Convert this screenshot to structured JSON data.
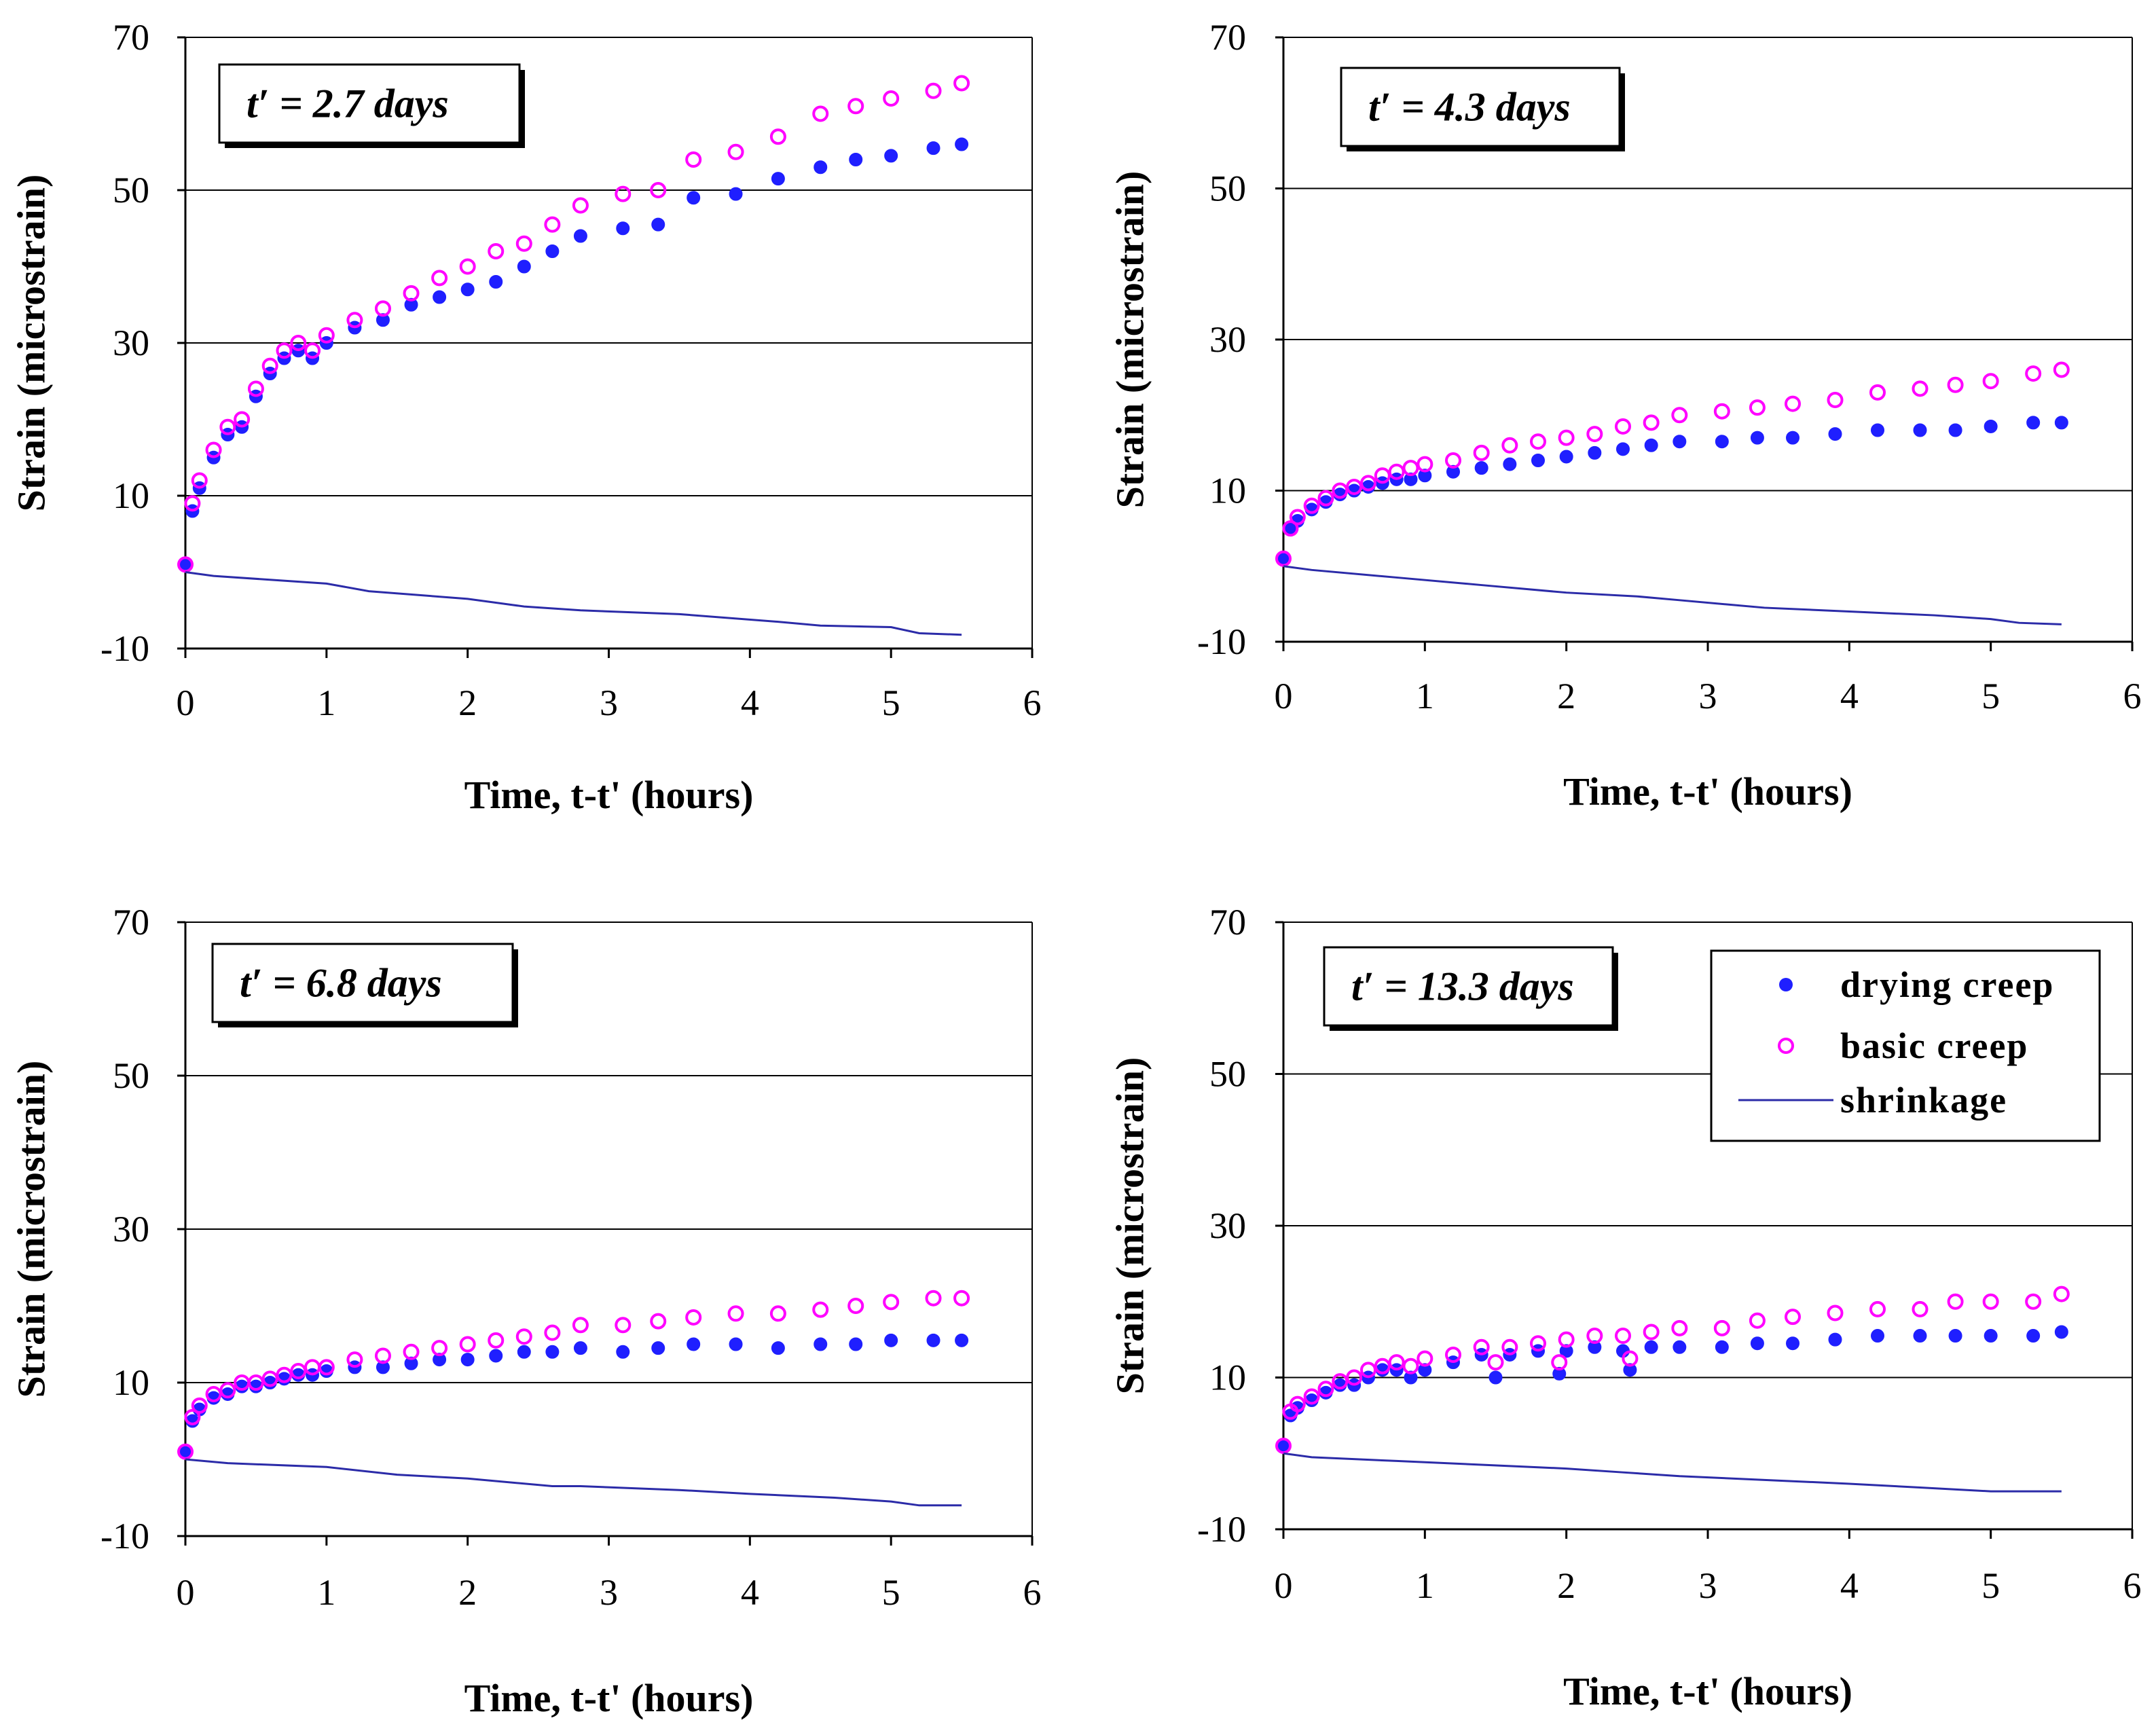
{
  "figure": {
    "legend": {
      "entries": [
        {
          "name": "drying creep",
          "marker": "filled-circle",
          "color": "#1f1fff"
        },
        {
          "name": "basic creep",
          "marker": "open-circle",
          "color": "#ff00ff"
        },
        {
          "name": "shrinkage",
          "marker": "line",
          "color": "#2b2ba8"
        }
      ]
    },
    "colors": {
      "drying": "#1f1fff",
      "basic": "#ff00ff",
      "shrinkage": "#2b2ba8",
      "grid": "#000000"
    }
  },
  "chart_data": [
    {
      "type": "scatter",
      "panel": "top-left",
      "label": "t′ = 2.7 days",
      "xlabel": "Time, t-t' (hours)",
      "ylabel": "Strain (microstrain)",
      "xlim": [
        0,
        6
      ],
      "ylim": [
        -10,
        70
      ],
      "xticks": [
        "0",
        "1",
        "2",
        "3",
        "4",
        "5",
        "6"
      ],
      "yticks": [
        "-10",
        "10",
        "30",
        "50",
        "70"
      ],
      "grid": "horizontal",
      "series": [
        {
          "name": "drying creep",
          "x": [
            0,
            0.05,
            0.1,
            0.2,
            0.3,
            0.4,
            0.5,
            0.6,
            0.7,
            0.8,
            0.9,
            1.0,
            1.2,
            1.4,
            1.6,
            1.8,
            2.0,
            2.2,
            2.4,
            2.6,
            2.8,
            3.1,
            3.35,
            3.6,
            3.9,
            4.2,
            4.5,
            4.75,
            5.0,
            5.3,
            5.5
          ],
          "y": [
            1,
            8,
            11,
            15,
            18,
            19,
            23,
            26,
            28,
            29,
            28,
            30,
            32,
            33,
            35,
            36,
            37,
            38,
            40,
            42,
            44,
            45,
            45.5,
            49,
            49.5,
            51.5,
            53,
            54,
            54.5,
            55.5,
            56
          ]
        },
        {
          "name": "basic creep",
          "x": [
            0,
            0.05,
            0.1,
            0.2,
            0.3,
            0.4,
            0.5,
            0.6,
            0.7,
            0.8,
            0.9,
            1.0,
            1.2,
            1.4,
            1.6,
            1.8,
            2.0,
            2.2,
            2.4,
            2.6,
            2.8,
            3.1,
            3.35,
            3.6,
            3.9,
            4.2,
            4.5,
            4.75,
            5.0,
            5.3,
            5.5
          ],
          "y": [
            1,
            9,
            12,
            16,
            19,
            20,
            24,
            27,
            29,
            30,
            29,
            31,
            33,
            34.5,
            36.5,
            38.5,
            40,
            42,
            43,
            45.5,
            48,
            49.5,
            50,
            54,
            55,
            57,
            60,
            61,
            62,
            63,
            64
          ]
        },
        {
          "name": "shrinkage",
          "x": [
            0,
            0.2,
            1.0,
            1.3,
            2.0,
            2.4,
            2.8,
            3.5,
            4.2,
            4.5,
            5.0,
            5.2,
            5.5
          ],
          "y": [
            0,
            -0.5,
            -1.5,
            -2.5,
            -3.5,
            -4.5,
            -5,
            -5.5,
            -6.5,
            -7,
            -7.2,
            -8,
            -8.2
          ]
        }
      ]
    },
    {
      "type": "scatter",
      "panel": "top-right",
      "label": "t′ = 4.3 days",
      "xlabel": "Time, t-t' (hours)",
      "ylabel": "Strain (microstrain)",
      "xlim": [
        0,
        6
      ],
      "ylim": [
        -10,
        70
      ],
      "xticks": [
        "0",
        "1",
        "2",
        "3",
        "4",
        "5",
        "6"
      ],
      "yticks": [
        "-10",
        "10",
        "30",
        "50",
        "70"
      ],
      "grid": "horizontal",
      "series": [
        {
          "name": "drying creep",
          "x": [
            0,
            0.05,
            0.1,
            0.2,
            0.3,
            0.4,
            0.5,
            0.6,
            0.7,
            0.8,
            0.9,
            1.0,
            1.2,
            1.4,
            1.6,
            1.8,
            2.0,
            2.2,
            2.4,
            2.6,
            2.8,
            3.1,
            3.35,
            3.6,
            3.9,
            4.2,
            4.5,
            4.75,
            5.0,
            5.3,
            5.5
          ],
          "y": [
            1,
            5,
            6,
            7.5,
            8.5,
            9.5,
            10,
            10.5,
            11,
            11.5,
            11.5,
            12,
            12.5,
            13,
            13.5,
            14,
            14.5,
            15,
            15.5,
            16,
            16.5,
            16.5,
            17,
            17,
            17.5,
            18,
            18,
            18,
            18.5,
            19,
            19
          ]
        },
        {
          "name": "basic creep",
          "x": [
            0,
            0.05,
            0.1,
            0.2,
            0.3,
            0.4,
            0.5,
            0.6,
            0.7,
            0.8,
            0.9,
            1.0,
            1.2,
            1.4,
            1.6,
            1.8,
            2.0,
            2.2,
            2.4,
            2.6,
            2.8,
            3.1,
            3.35,
            3.6,
            3.9,
            4.2,
            4.5,
            4.75,
            5.0,
            5.3,
            5.5
          ],
          "y": [
            1,
            5,
            6.5,
            8,
            9,
            10,
            10.5,
            11,
            12,
            12.5,
            13,
            13.5,
            14,
            15,
            16,
            16.5,
            17,
            17.5,
            18.5,
            19,
            20,
            20.5,
            21,
            21.5,
            22,
            23,
            23.5,
            24,
            24.5,
            25.5,
            26
          ]
        },
        {
          "name": "shrinkage",
          "x": [
            0,
            0.2,
            0.8,
            1.4,
            2.0,
            2.5,
            2.8,
            3.4,
            4.0,
            4.6,
            5.0,
            5.2,
            5.5
          ],
          "y": [
            0,
            -0.5,
            -1.5,
            -2.5,
            -3.5,
            -4,
            -4.5,
            -5.5,
            -6,
            -6.5,
            -7,
            -7.5,
            -7.7
          ]
        }
      ]
    },
    {
      "type": "scatter",
      "panel": "bottom-left",
      "label": "t′ = 6.8 days",
      "xlabel": "Time, t-t' (hours)",
      "ylabel": "Strain (microstrain)",
      "xlim": [
        0,
        6
      ],
      "ylim": [
        -10,
        70
      ],
      "xticks": [
        "0",
        "1",
        "2",
        "3",
        "4",
        "5",
        "6"
      ],
      "yticks": [
        "-10",
        "10",
        "30",
        "50",
        "70"
      ],
      "grid": "horizontal",
      "series": [
        {
          "name": "drying creep",
          "x": [
            0,
            0.05,
            0.1,
            0.2,
            0.3,
            0.4,
            0.5,
            0.6,
            0.7,
            0.8,
            0.9,
            1.0,
            1.2,
            1.4,
            1.6,
            1.8,
            2.0,
            2.2,
            2.4,
            2.6,
            2.8,
            3.1,
            3.35,
            3.6,
            3.9,
            4.2,
            4.5,
            4.75,
            5.0,
            5.3,
            5.5
          ],
          "y": [
            1,
            5,
            6.5,
            8,
            8.5,
            9.5,
            9.5,
            10,
            10.5,
            11,
            11,
            11.5,
            12,
            12,
            12.5,
            13,
            13,
            13.5,
            14,
            14,
            14.5,
            14,
            14.5,
            15,
            15,
            14.5,
            15,
            15,
            15.5,
            15.5,
            15.5
          ]
        },
        {
          "name": "basic creep",
          "x": [
            0,
            0.05,
            0.1,
            0.2,
            0.3,
            0.4,
            0.5,
            0.6,
            0.7,
            0.8,
            0.9,
            1.0,
            1.2,
            1.4,
            1.6,
            1.8,
            2.0,
            2.2,
            2.4,
            2.6,
            2.8,
            3.1,
            3.35,
            3.6,
            3.9,
            4.2,
            4.5,
            4.75,
            5.0,
            5.3,
            5.5
          ],
          "y": [
            1,
            5.5,
            7,
            8.5,
            9,
            10,
            10,
            10.5,
            11,
            11.5,
            12,
            12,
            13,
            13.5,
            14,
            14.5,
            15,
            15.5,
            16,
            16.5,
            17.5,
            17.5,
            18,
            18.5,
            19,
            19,
            19.5,
            20,
            20.5,
            21,
            21
          ]
        },
        {
          "name": "shrinkage",
          "x": [
            0,
            0.3,
            1.0,
            1.5,
            2.0,
            2.6,
            2.8,
            3.5,
            4.0,
            4.6,
            5.0,
            5.2,
            5.5
          ],
          "y": [
            0,
            -0.5,
            -1,
            -2,
            -2.5,
            -3.5,
            -3.5,
            -4,
            -4.5,
            -5,
            -5.5,
            -6,
            -6
          ]
        }
      ]
    },
    {
      "type": "scatter",
      "panel": "bottom-right",
      "label": "t′ = 13.3 days",
      "xlabel": "Time, t-t' (hours)",
      "ylabel": "Strain (microstrain)",
      "xlim": [
        0,
        6
      ],
      "ylim": [
        -10,
        70
      ],
      "xticks": [
        "0",
        "1",
        "2",
        "3",
        "4",
        "5",
        "6"
      ],
      "yticks": [
        "-10",
        "10",
        "30",
        "50",
        "70"
      ],
      "grid": "horizontal",
      "series": [
        {
          "name": "drying creep",
          "x": [
            0,
            0.05,
            0.1,
            0.2,
            0.3,
            0.4,
            0.5,
            0.6,
            0.7,
            0.8,
            0.9,
            1.0,
            1.2,
            1.4,
            1.5,
            1.6,
            1.8,
            1.95,
            2.0,
            2.2,
            2.4,
            2.45,
            2.6,
            2.8,
            3.1,
            3.35,
            3.6,
            3.9,
            4.2,
            4.5,
            4.75,
            5.0,
            5.3,
            5.5
          ],
          "y": [
            1,
            5,
            6,
            7,
            8,
            9,
            9,
            10,
            11,
            11,
            10,
            11,
            12,
            13,
            10,
            13,
            13.5,
            10.5,
            13.5,
            14,
            13.5,
            11,
            14,
            14,
            14,
            14.5,
            14.5,
            15,
            15.5,
            15.5,
            15.5,
            15.5,
            15.5,
            16
          ]
        },
        {
          "name": "basic creep",
          "x": [
            0,
            0.05,
            0.1,
            0.2,
            0.3,
            0.4,
            0.5,
            0.6,
            0.7,
            0.8,
            0.9,
            1.0,
            1.2,
            1.4,
            1.5,
            1.6,
            1.8,
            1.95,
            2.0,
            2.2,
            2.4,
            2.45,
            2.6,
            2.8,
            3.1,
            3.35,
            3.6,
            3.9,
            4.2,
            4.5,
            4.75,
            5.0,
            5.3,
            5.5
          ],
          "y": [
            1,
            5.5,
            6.5,
            7.5,
            8.5,
            9.5,
            10,
            11,
            11.5,
            12,
            11.5,
            12.5,
            13,
            14,
            12,
            14,
            14.5,
            12,
            15,
            15.5,
            15.5,
            12.5,
            16,
            16.5,
            16.5,
            17.5,
            18,
            18.5,
            19,
            19,
            20,
            20,
            20,
            21
          ]
        },
        {
          "name": "shrinkage",
          "x": [
            0,
            0.2,
            0.8,
            1.4,
            2.0,
            2.4,
            2.8,
            3.4,
            4.0,
            4.5,
            5.0,
            5.2,
            5.5
          ],
          "y": [
            0,
            -0.5,
            -1,
            -1.5,
            -2,
            -2.5,
            -3,
            -3.5,
            -4,
            -4.5,
            -5,
            -5,
            -5
          ]
        }
      ]
    }
  ]
}
